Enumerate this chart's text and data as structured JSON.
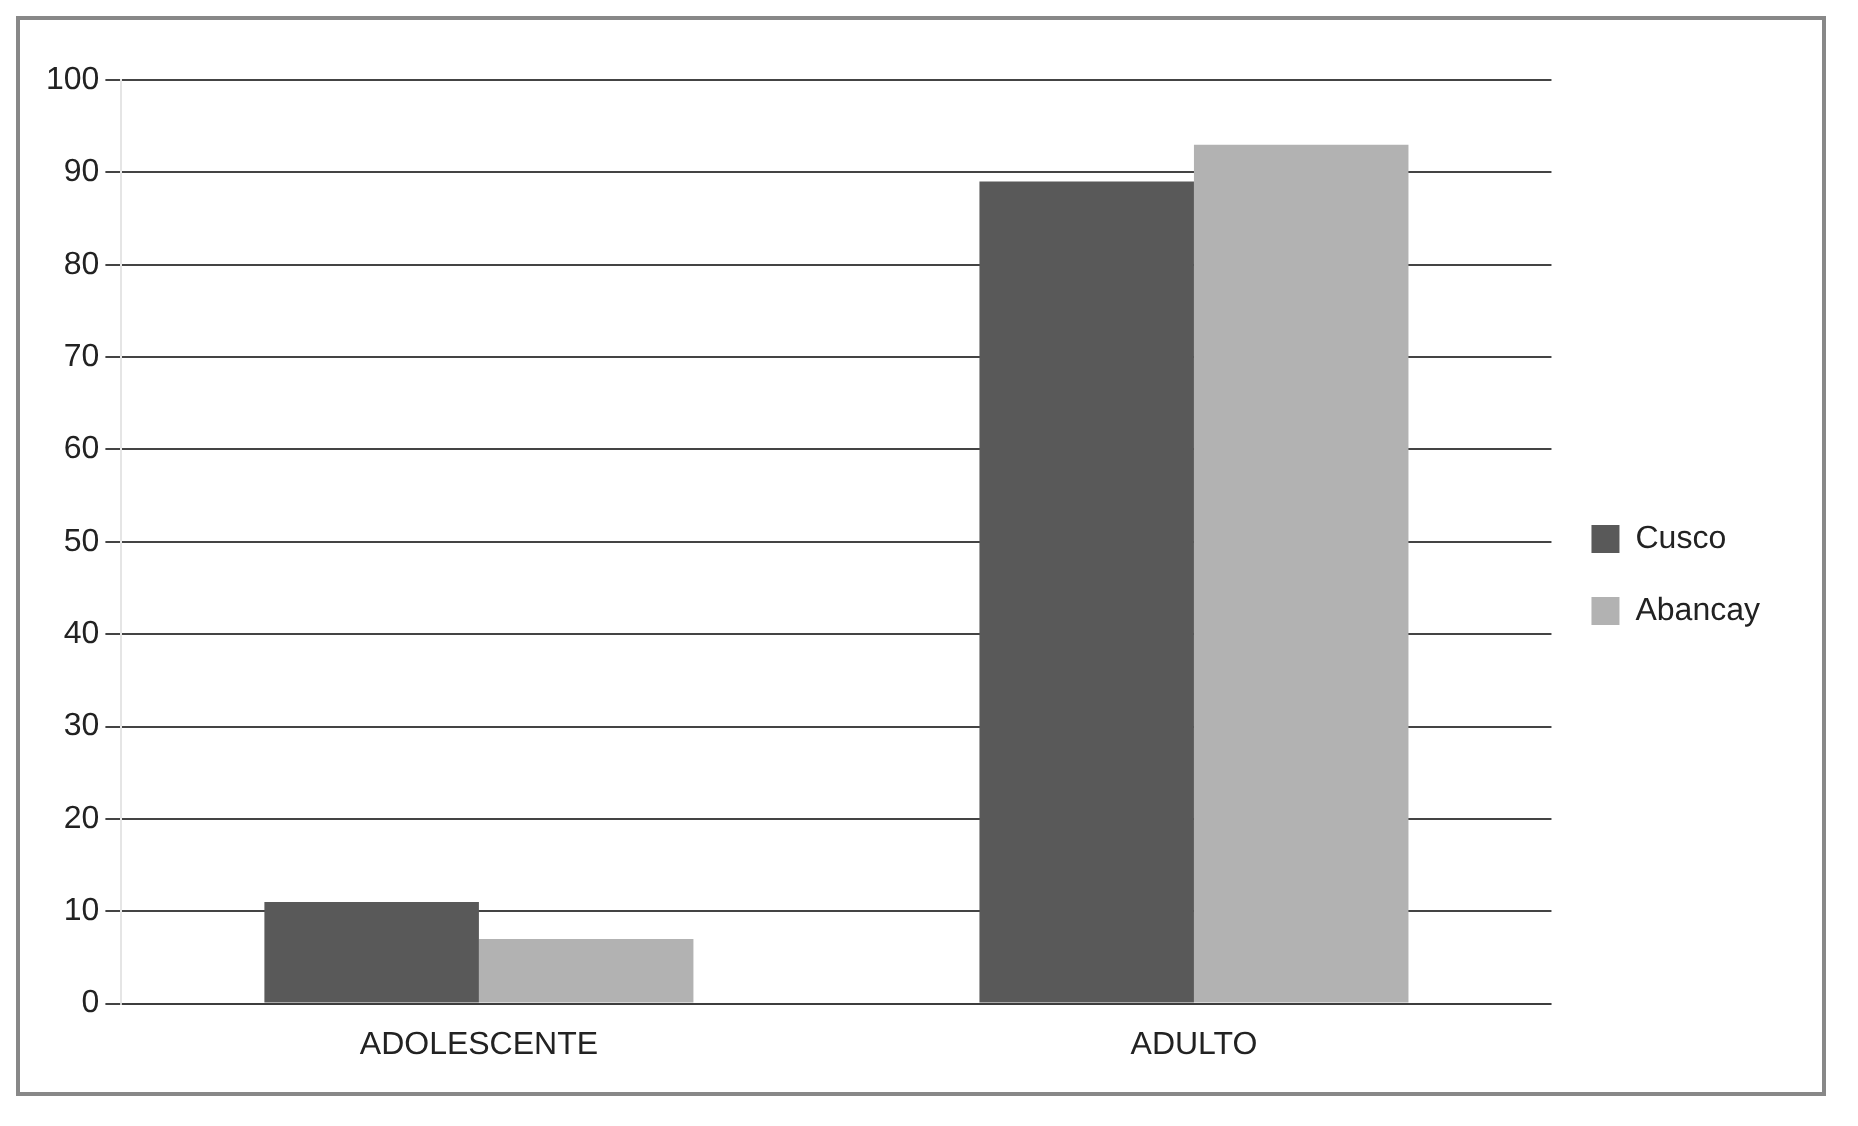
{
  "chart_data": {
    "type": "bar",
    "categories": [
      "ADOLESCENTE",
      "ADULTO"
    ],
    "series": [
      {
        "name": "Cusco",
        "color": "#595959",
        "values": [
          11,
          89
        ]
      },
      {
        "name": "Abancay",
        "color": "#b2b2b2",
        "values": [
          7,
          93
        ]
      }
    ],
    "ylim": [
      0,
      100
    ],
    "yticks": [
      0,
      10,
      20,
      30,
      40,
      50,
      60,
      70,
      80,
      90,
      100
    ],
    "grid": "y",
    "legend": "right"
  }
}
